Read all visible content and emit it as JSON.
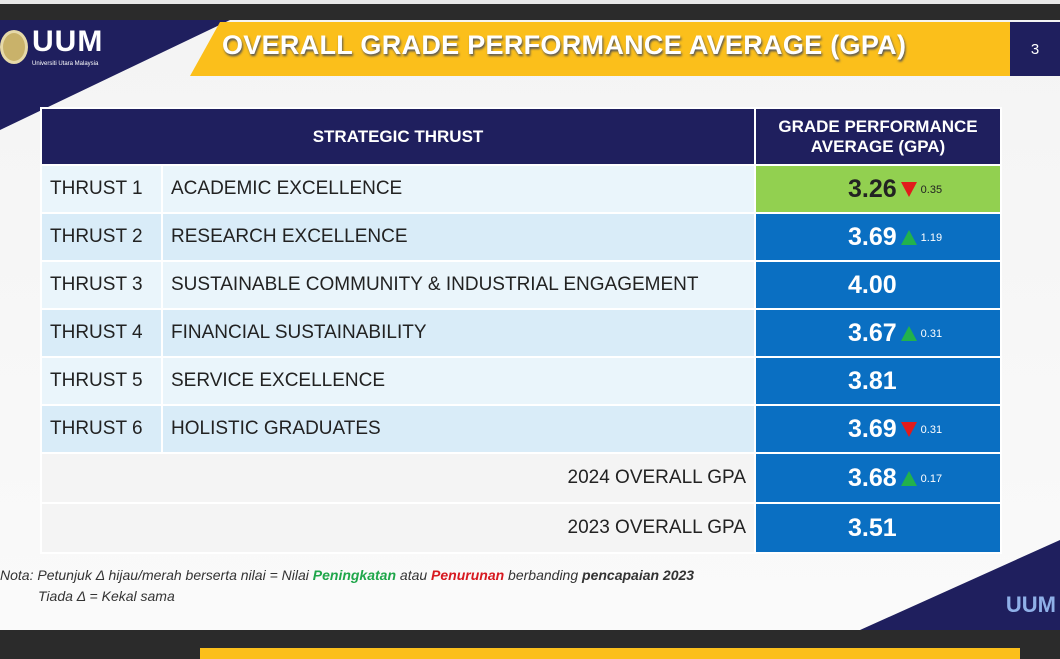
{
  "header": {
    "logo_text": "UUM",
    "logo_subtitle": "Universiti Utara Malaysia",
    "title": "OVERALL GRADE PERFORMANCE AVERAGE (GPA)",
    "page_number": "3"
  },
  "table": {
    "headers": [
      "STRATEGIC THRUST",
      "GRADE PERFORMANCE AVERAGE (GPA)"
    ],
    "rows": [
      {
        "thrust": "THRUST 1",
        "name": "ACADEMIC EXCELLENCE",
        "gpa": "3.26",
        "trend": "down",
        "delta": "0.35",
        "highlight": "#92d050"
      },
      {
        "thrust": "THRUST 2",
        "name": "RESEARCH EXCELLENCE",
        "gpa": "3.69",
        "trend": "up",
        "delta": "1.19"
      },
      {
        "thrust": "THRUST 3",
        "name": "SUSTAINABLE COMMUNITY & INDUSTRIAL ENGAGEMENT",
        "gpa": "4.00"
      },
      {
        "thrust": "THRUST 4",
        "name": "FINANCIAL SUSTAINABILITY",
        "gpa": "3.67",
        "trend": "up",
        "delta": "0.31"
      },
      {
        "thrust": "THRUST 5",
        "name": "SERVICE EXCELLENCE",
        "gpa": "3.81"
      },
      {
        "thrust": "THRUST 6",
        "name": "HOLISTIC GRADUATES",
        "gpa": "3.69",
        "trend": "down",
        "delta": "0.31"
      }
    ],
    "overall": [
      {
        "label": "2024 OVERALL GPA",
        "gpa": "3.68",
        "trend": "up",
        "delta": "0.17"
      },
      {
        "label": "2023 OVERALL GPA",
        "gpa": "3.51"
      }
    ]
  },
  "note": {
    "prefix": "Nota: Petunjuk Δ hijau/merah berserta nilai = Nilai ",
    "increase": "Peningkatan",
    "mid": " atau ",
    "decrease": "Penurunan",
    "suffix": " berbanding ",
    "bold": "pencapaian 2023",
    "line2": "Tiada  Δ  = Kekal sama"
  },
  "corner_logo": "UUM",
  "colors": {
    "navy": "#1f1f5e",
    "yellow": "#fbbf1b",
    "blue": "#0a6fc2",
    "green": "#92d050",
    "up": "#22b24c",
    "down": "#e21b1b"
  }
}
